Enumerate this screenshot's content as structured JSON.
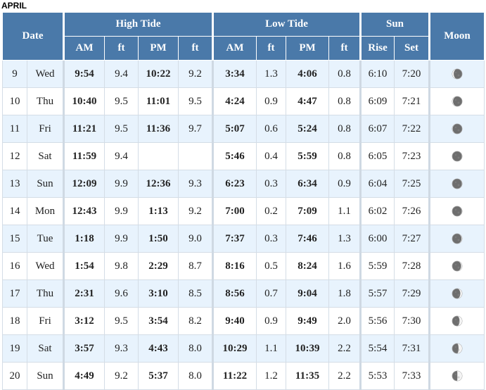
{
  "month_label": "APRIL",
  "headers": {
    "date": "Date",
    "high_tide": "High Tide",
    "low_tide": "Low Tide",
    "sun": "Sun",
    "moon": "Moon",
    "am": "AM",
    "ft": "ft",
    "pm": "PM",
    "rise": "Rise",
    "set": "Set"
  },
  "rows": [
    {
      "day": "9",
      "weekday": "Wed",
      "high_am": "9:54",
      "high_am_ft": "9.4",
      "high_pm": "10:22",
      "high_pm_ft": "9.2",
      "low_am": "3:34",
      "low_am_ft": "1.3",
      "low_pm": "4:06",
      "low_pm_ft": "0.8",
      "rise": "6:10",
      "set": "7:20",
      "moon": "waning-crescent-icon",
      "lit": 0.15,
      "waxing": false
    },
    {
      "day": "10",
      "weekday": "Thu",
      "high_am": "10:40",
      "high_am_ft": "9.5",
      "high_pm": "11:01",
      "high_pm_ft": "9.5",
      "low_am": "4:24",
      "low_am_ft": "0.9",
      "low_pm": "4:47",
      "low_pm_ft": "0.8",
      "rise": "6:09",
      "set": "7:21",
      "moon": "waning-crescent-icon",
      "lit": 0.08,
      "waxing": false
    },
    {
      "day": "11",
      "weekday": "Fri",
      "high_am": "11:21",
      "high_am_ft": "9.5",
      "high_pm": "11:36",
      "high_pm_ft": "9.7",
      "low_am": "5:07",
      "low_am_ft": "0.6",
      "low_pm": "5:24",
      "low_pm_ft": "0.8",
      "rise": "6:07",
      "set": "7:22",
      "moon": "waning-crescent-icon",
      "lit": 0.04,
      "waxing": false
    },
    {
      "day": "12",
      "weekday": "Sat",
      "high_am": "11:59",
      "high_am_ft": "9.4",
      "high_pm": "",
      "high_pm_ft": "",
      "low_am": "5:46",
      "low_am_ft": "0.4",
      "low_pm": "5:59",
      "low_pm_ft": "0.8",
      "rise": "6:05",
      "set": "7:23",
      "moon": "new-moon-icon",
      "lit": 0.0,
      "waxing": true
    },
    {
      "day": "13",
      "weekday": "Sun",
      "high_am": "12:09",
      "high_am_ft": "9.9",
      "high_pm": "12:36",
      "high_pm_ft": "9.3",
      "low_am": "6:23",
      "low_am_ft": "0.3",
      "low_pm": "6:34",
      "low_pm_ft": "0.9",
      "rise": "6:04",
      "set": "7:25",
      "moon": "new-moon-icon",
      "lit": 0.01,
      "waxing": true
    },
    {
      "day": "14",
      "weekday": "Mon",
      "high_am": "12:43",
      "high_am_ft": "9.9",
      "high_pm": "1:13",
      "high_pm_ft": "9.2",
      "low_am": "7:00",
      "low_am_ft": "0.2",
      "low_pm": "7:09",
      "low_pm_ft": "1.1",
      "rise": "6:02",
      "set": "7:26",
      "moon": "new-moon-icon",
      "lit": 0.03,
      "waxing": true
    },
    {
      "day": "15",
      "weekday": "Tue",
      "high_am": "1:18",
      "high_am_ft": "9.9",
      "high_pm": "1:50",
      "high_pm_ft": "9.0",
      "low_am": "7:37",
      "low_am_ft": "0.3",
      "low_pm": "7:46",
      "low_pm_ft": "1.3",
      "rise": "6:00",
      "set": "7:27",
      "moon": "waxing-crescent-icon",
      "lit": 0.06,
      "waxing": true
    },
    {
      "day": "16",
      "weekday": "Wed",
      "high_am": "1:54",
      "high_am_ft": "9.8",
      "high_pm": "2:29",
      "high_pm_ft": "8.7",
      "low_am": "8:16",
      "low_am_ft": "0.5",
      "low_pm": "8:24",
      "low_pm_ft": "1.6",
      "rise": "5:59",
      "set": "7:28",
      "moon": "waxing-crescent-icon",
      "lit": 0.1,
      "waxing": true
    },
    {
      "day": "17",
      "weekday": "Thu",
      "high_am": "2:31",
      "high_am_ft": "9.6",
      "high_pm": "3:10",
      "high_pm_ft": "8.5",
      "low_am": "8:56",
      "low_am_ft": "0.7",
      "low_pm": "9:04",
      "low_pm_ft": "1.8",
      "rise": "5:57",
      "set": "7:29",
      "moon": "waxing-crescent-icon",
      "lit": 0.18,
      "waxing": true
    },
    {
      "day": "18",
      "weekday": "Fri",
      "high_am": "3:12",
      "high_am_ft": "9.5",
      "high_pm": "3:54",
      "high_pm_ft": "8.2",
      "low_am": "9:40",
      "low_am_ft": "0.9",
      "low_pm": "9:49",
      "low_pm_ft": "2.0",
      "rise": "5:56",
      "set": "7:30",
      "moon": "waxing-crescent-icon",
      "lit": 0.26,
      "waxing": true
    },
    {
      "day": "19",
      "weekday": "Sat",
      "high_am": "3:57",
      "high_am_ft": "9.3",
      "high_pm": "4:43",
      "high_pm_ft": "8.0",
      "low_am": "10:29",
      "low_am_ft": "1.1",
      "low_pm": "10:39",
      "low_pm_ft": "2.2",
      "rise": "5:54",
      "set": "7:31",
      "moon": "waxing-crescent-icon",
      "lit": 0.36,
      "waxing": true
    },
    {
      "day": "20",
      "weekday": "Sun",
      "high_am": "4:49",
      "high_am_ft": "9.2",
      "high_pm": "5:37",
      "high_pm_ft": "8.0",
      "low_am": "11:22",
      "low_am_ft": "1.2",
      "low_pm": "11:35",
      "low_pm_ft": "2.2",
      "rise": "5:53",
      "set": "7:33",
      "moon": "first-quarter-icon",
      "lit": 0.48,
      "waxing": true
    }
  ],
  "colors": {
    "header_bg": "#4a79a9",
    "row_alt_bg": "#e8f3fd",
    "moon_lit": "#f4f4f4",
    "moon_dark": "#6e6e6e"
  }
}
